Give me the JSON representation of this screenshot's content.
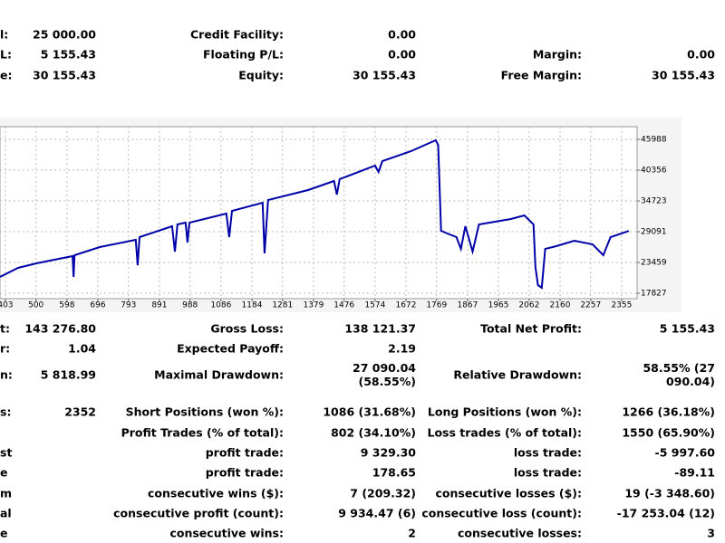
{
  "top_table": {
    "rows": [
      [
        {
          "label": "l:",
          "value": "25 000.00"
        },
        {
          "label": "Credit Facility:",
          "value": "0.00"
        },
        null
      ],
      [
        {
          "label": "L:",
          "value": "5 155.43"
        },
        {
          "label": "Floating P/L:",
          "value": "0.00"
        },
        {
          "label": "Margin:",
          "value": "0.00"
        }
      ],
      [
        {
          "label": "e:",
          "value": "30 155.43"
        },
        {
          "label": "Equity:",
          "value": "30 155.43"
        },
        {
          "label": "Free Margin:",
          "value": "30 155.43"
        }
      ]
    ]
  },
  "chart_data": {
    "type": "line",
    "x": [
      386,
      443,
      501,
      558,
      616,
      619,
      622,
      702,
      816,
      822,
      828,
      931,
      940,
      948,
      974,
      980,
      986,
      1103,
      1112,
      1121,
      1218,
      1224,
      1235,
      1362,
      1444,
      1453,
      1462,
      1574,
      1585,
      1597,
      1688,
      1766,
      1774,
      1783,
      1803,
      1832,
      1846,
      1860,
      1883,
      1903,
      2004,
      2047,
      2076,
      2082,
      2090,
      2102,
      2113,
      2148,
      2205,
      2263,
      2297,
      2320,
      2378
    ],
    "series": [
      {
        "color": "#0000a8",
        "values": [
          20809,
          22465,
          23293,
          23956,
          24619,
          20809,
          24784,
          26275,
          27600,
          22962,
          28097,
          30085,
          25447,
          30416,
          30748,
          27104,
          30748,
          32404,
          28097,
          32901,
          34392,
          25116,
          34889,
          36711,
          38368,
          35883,
          38699,
          41184,
          40025,
          42012,
          43834,
          45822,
          44994,
          29257,
          28760,
          28097,
          25944,
          30085,
          25447,
          30416,
          31410,
          32073,
          30416,
          22631,
          19318,
          18821,
          25944,
          26441,
          27435,
          26772,
          24784,
          28097,
          29223
        ]
      }
    ],
    "xlim": [
      386,
      2404
    ],
    "xticks": [
      403,
      500,
      598,
      696,
      793,
      891,
      988,
      1086,
      1184,
      1281,
      1379,
      1476,
      1574,
      1672,
      1769,
      1867,
      1965,
      2062,
      2160,
      2257,
      2355
    ],
    "ylim": [
      16833,
      48307
    ],
    "yticks": [
      45988,
      40356,
      34723,
      29091,
      23459,
      17827
    ],
    "grid": true
  },
  "stats_table": {
    "rows": [
      [
        {
          "label": "t:",
          "value": "143 276.80"
        },
        {
          "label": "Gross Loss:",
          "value": "138 121.37"
        },
        {
          "label": "Total Net Profit:",
          "value": "5 155.43"
        }
      ],
      [
        {
          "label": "r:",
          "value": "1.04"
        },
        {
          "label": "Expected Payoff:",
          "value": "2.19"
        },
        null
      ],
      [
        {
          "label": "n:",
          "value": "5 818.99"
        },
        {
          "label": "Maximal Drawdown:",
          "value": [
            "27 090.04",
            "(58.55%)"
          ]
        },
        {
          "label": "Relative Drawdown:",
          "value": [
            "58.55% (27",
            "090.04)"
          ]
        }
      ],
      [
        {
          "label": "s:",
          "value": "2352"
        },
        {
          "label": "Short Positions (won %):",
          "value": "1086 (31.68%)"
        },
        {
          "label": "Long Positions (won %):",
          "value": "1266 (36.18%)"
        }
      ],
      [
        null,
        {
          "label": "Profit Trades (% of total):",
          "value": "802 (34.10%)"
        },
        {
          "label": "Loss trades (% of total):",
          "value": "1550 (65.90%)"
        }
      ],
      [
        {
          "label": "st"
        },
        {
          "label": "profit trade:",
          "value": "9 329.30"
        },
        {
          "label": "loss trade:",
          "value": "-5 997.60"
        }
      ],
      [
        {
          "label": "e"
        },
        {
          "label": "profit trade:",
          "value": "178.65"
        },
        {
          "label": "loss trade:",
          "value": "-89.11"
        }
      ],
      [
        {
          "label": "m"
        },
        {
          "label": "consecutive wins ($):",
          "value": "7 (209.32)"
        },
        {
          "label": "consecutive losses ($):",
          "value": "19 (-3 348.60)"
        }
      ],
      [
        {
          "label": "al"
        },
        {
          "label": "consecutive profit (count):",
          "value": "9 934.47 (6)"
        },
        {
          "label": "consecutive loss (count):",
          "value": "-17 253.04 (12)"
        }
      ],
      [
        {
          "label": "e"
        },
        {
          "label": "consecutive wins:",
          "value": "2"
        },
        {
          "label": "consecutive losses:",
          "value": "3"
        }
      ]
    ]
  }
}
